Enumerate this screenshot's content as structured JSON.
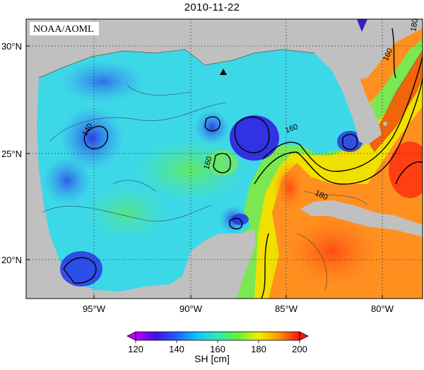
{
  "title": "2010-11-22",
  "credit": "NOAA/AOML",
  "axes": {
    "y_ticks": [
      "30°N",
      "25°N",
      "20°N"
    ],
    "x_ticks": [
      "95°W",
      "90°W",
      "85°W",
      "80°W"
    ]
  },
  "contour_labels": [
    "140",
    "160",
    "160",
    "160",
    "180",
    "180"
  ],
  "colorbar": {
    "ticks": [
      "120",
      "140",
      "160",
      "180",
      "200"
    ],
    "units": "SH [cm]"
  },
  "marker": {
    "shape": "triangle",
    "icon": "station-marker-icon"
  },
  "colors": {
    "land": "#c0c0c0",
    "ocean_low": "#2850f0",
    "ocean_mid": "#40e0d8",
    "ocean_high": "#ff5a10"
  }
}
